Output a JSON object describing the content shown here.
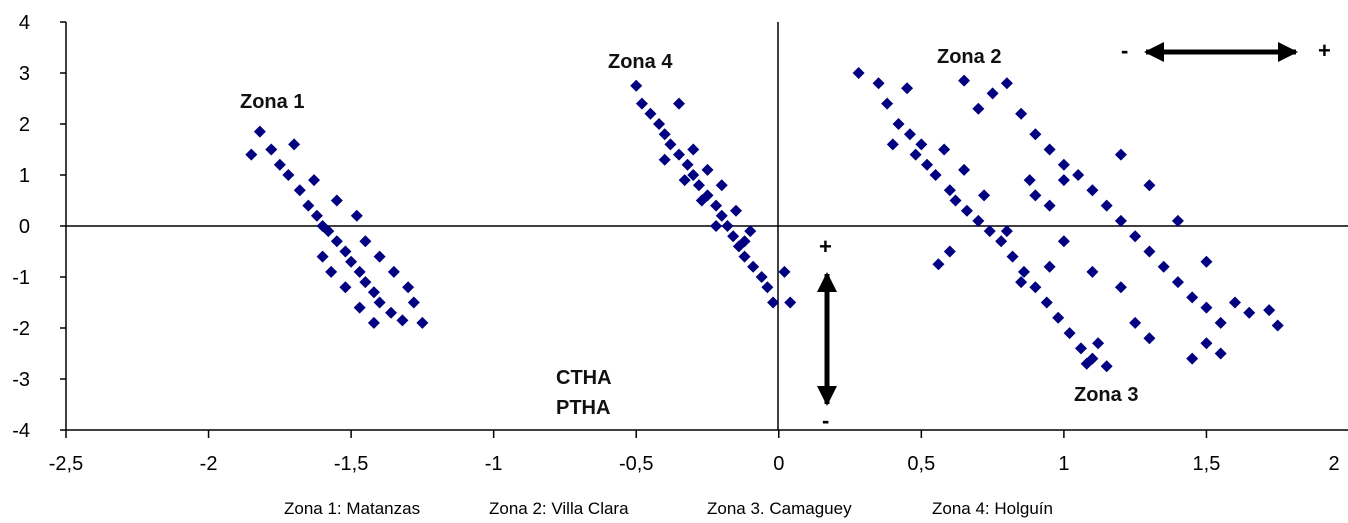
{
  "chart_data": {
    "type": "scatter",
    "title": "",
    "xlabel": "",
    "ylabel": "",
    "xlim": [
      -2.5,
      2
    ],
    "ylim": [
      -4,
      4
    ],
    "x_ticks": [
      -2.5,
      -2,
      -1.5,
      -1,
      -0.5,
      0,
      0.5,
      1,
      1.5,
      2
    ],
    "y_ticks": [
      -4,
      -3,
      -2,
      -1,
      0,
      1,
      2,
      3,
      4
    ],
    "x_tick_labels": [
      "-2,5",
      "-2",
      "-1,5",
      "-1",
      "-0,5",
      "0",
      "0,5",
      "1",
      "1,5",
      "2"
    ],
    "y_tick_labels": [
      "-4",
      "-3",
      "-2",
      "-1",
      "0",
      "1",
      "2",
      "3",
      "4"
    ],
    "grid": false,
    "marker": "diamond",
    "marker_color": "#000080",
    "series": [
      {
        "name": "Zona 1",
        "values": [
          [
            -1.82,
            1.85
          ],
          [
            -1.85,
            1.4
          ],
          [
            -1.78,
            1.5
          ],
          [
            -1.75,
            1.2
          ],
          [
            -1.72,
            1.0
          ],
          [
            -1.68,
            0.7
          ],
          [
            -1.65,
            0.4
          ],
          [
            -1.62,
            0.2
          ],
          [
            -1.6,
            0.0
          ],
          [
            -1.58,
            -0.1
          ],
          [
            -1.55,
            -0.3
          ],
          [
            -1.52,
            -0.5
          ],
          [
            -1.5,
            -0.7
          ],
          [
            -1.47,
            -0.9
          ],
          [
            -1.45,
            -1.1
          ],
          [
            -1.42,
            -1.3
          ],
          [
            -1.4,
            -1.5
          ],
          [
            -1.36,
            -1.7
          ],
          [
            -1.32,
            -1.85
          ],
          [
            -1.25,
            -1.9
          ],
          [
            -1.7,
            1.6
          ],
          [
            -1.63,
            0.9
          ],
          [
            -1.55,
            0.5
          ],
          [
            -1.48,
            0.2
          ],
          [
            -1.45,
            -0.3
          ],
          [
            -1.4,
            -0.6
          ],
          [
            -1.35,
            -0.9
          ],
          [
            -1.3,
            -1.2
          ],
          [
            -1.28,
            -1.5
          ],
          [
            -1.6,
            -0.6
          ],
          [
            -1.57,
            -0.9
          ],
          [
            -1.52,
            -1.2
          ],
          [
            -1.47,
            -1.6
          ],
          [
            -1.42,
            -1.9
          ]
        ]
      },
      {
        "name": "Zona 2",
        "values": [
          [
            0.65,
            2.85
          ],
          [
            0.7,
            2.3
          ],
          [
            0.75,
            2.6
          ],
          [
            0.8,
            2.8
          ],
          [
            0.85,
            2.2
          ],
          [
            0.9,
            1.8
          ],
          [
            0.95,
            1.5
          ],
          [
            1.0,
            1.2
          ],
          [
            1.05,
            1.0
          ],
          [
            1.1,
            0.7
          ],
          [
            1.15,
            0.4
          ],
          [
            1.2,
            0.1
          ],
          [
            1.25,
            -0.2
          ],
          [
            1.3,
            -0.5
          ],
          [
            1.35,
            -0.8
          ],
          [
            1.4,
            -1.1
          ],
          [
            1.45,
            -1.4
          ],
          [
            1.5,
            -1.6
          ],
          [
            1.55,
            -1.9
          ],
          [
            1.6,
            -1.5
          ],
          [
            1.65,
            -1.7
          ],
          [
            1.72,
            -1.65
          ],
          [
            1.75,
            -1.95
          ],
          [
            1.5,
            -2.3
          ],
          [
            1.45,
            -2.6
          ],
          [
            1.55,
            -2.5
          ],
          [
            1.3,
            -2.2
          ],
          [
            1.25,
            -1.9
          ],
          [
            1.2,
            -1.2
          ],
          [
            1.1,
            -0.9
          ],
          [
            1.0,
            -0.3
          ],
          [
            0.95,
            0.4
          ],
          [
            0.88,
            0.9
          ],
          [
            1.4,
            0.1
          ],
          [
            1.5,
            -0.7
          ],
          [
            1.2,
            1.4
          ],
          [
            1.3,
            0.8
          ],
          [
            0.9,
            0.6
          ],
          [
            1.0,
            0.9
          ]
        ]
      },
      {
        "name": "Zona 3",
        "values": [
          [
            0.28,
            3.0
          ],
          [
            0.35,
            2.8
          ],
          [
            0.45,
            2.7
          ],
          [
            0.38,
            2.4
          ],
          [
            0.42,
            2.0
          ],
          [
            0.4,
            1.6
          ],
          [
            0.48,
            1.4
          ],
          [
            0.52,
            1.2
          ],
          [
            0.55,
            1.0
          ],
          [
            0.6,
            0.7
          ],
          [
            0.62,
            0.5
          ],
          [
            0.66,
            0.3
          ],
          [
            0.7,
            0.1
          ],
          [
            0.74,
            -0.1
          ],
          [
            0.78,
            -0.3
          ],
          [
            0.82,
            -0.6
          ],
          [
            0.86,
            -0.9
          ],
          [
            0.9,
            -1.2
          ],
          [
            0.94,
            -1.5
          ],
          [
            0.98,
            -1.8
          ],
          [
            1.02,
            -2.1
          ],
          [
            1.06,
            -2.4
          ],
          [
            1.1,
            -2.6
          ],
          [
            1.15,
            -2.75
          ],
          [
            1.12,
            -2.3
          ],
          [
            0.56,
            -0.75
          ],
          [
            0.6,
            -0.5
          ],
          [
            0.8,
            -0.1
          ],
          [
            0.72,
            0.6
          ],
          [
            0.65,
            1.1
          ],
          [
            0.58,
            1.5
          ],
          [
            0.85,
            -1.1
          ],
          [
            0.95,
            -0.8
          ],
          [
            1.08,
            -2.7
          ],
          [
            0.5,
            1.6
          ],
          [
            0.46,
            1.8
          ]
        ]
      },
      {
        "name": "Zona 4",
        "values": [
          [
            -0.5,
            2.75
          ],
          [
            -0.48,
            2.4
          ],
          [
            -0.45,
            2.2
          ],
          [
            -0.42,
            2.0
          ],
          [
            -0.4,
            1.8
          ],
          [
            -0.38,
            1.6
          ],
          [
            -0.35,
            1.4
          ],
          [
            -0.32,
            1.2
          ],
          [
            -0.3,
            1.0
          ],
          [
            -0.28,
            0.8
          ],
          [
            -0.25,
            0.6
          ],
          [
            -0.22,
            0.4
          ],
          [
            -0.2,
            0.2
          ],
          [
            -0.18,
            0.0
          ],
          [
            -0.16,
            -0.2
          ],
          [
            -0.14,
            -0.4
          ],
          [
            -0.12,
            -0.6
          ],
          [
            -0.09,
            -0.8
          ],
          [
            -0.06,
            -1.0
          ],
          [
            -0.04,
            -1.2
          ],
          [
            -0.02,
            -1.5
          ],
          [
            0.02,
            -0.9
          ],
          [
            0.04,
            -1.5
          ],
          [
            -0.35,
            2.4
          ],
          [
            -0.3,
            1.5
          ],
          [
            -0.25,
            1.1
          ],
          [
            -0.2,
            0.8
          ],
          [
            -0.15,
            0.3
          ],
          [
            -0.1,
            -0.1
          ],
          [
            -0.4,
            1.3
          ],
          [
            -0.33,
            0.9
          ],
          [
            -0.27,
            0.5
          ],
          [
            -0.22,
            0.0
          ],
          [
            -0.12,
            -0.3
          ]
        ]
      }
    ]
  },
  "annotations": {
    "zona1": "Zona 1",
    "zona2": "Zona 2",
    "zona3": "Zona 3",
    "zona4": "Zona 4",
    "ctha": "CTHA",
    "ptha": "PTHA",
    "h_minus": "-",
    "h_plus": "+",
    "v_plus": "+",
    "v_minus": "-"
  },
  "legend": {
    "zona1": "Zona 1: Matanzas",
    "zona2": "Zona 2: Villa Clara",
    "zona3": "Zona 3. Camaguey",
    "zona4": "Zona 4: Holguín"
  }
}
